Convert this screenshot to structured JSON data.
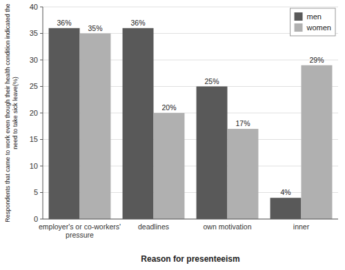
{
  "chart_data": {
    "type": "bar",
    "categories": [
      "employer's or co-workers'\npressure",
      "deadlines",
      "own motivation",
      "inner"
    ],
    "series": [
      {
        "name": "men",
        "color": "#595959",
        "values": [
          36,
          36,
          25,
          4
        ],
        "value_labels": [
          "36%",
          "36%",
          "25%",
          "4%"
        ]
      },
      {
        "name": "women",
        "color": "#b0b0b0",
        "values": [
          35,
          20,
          17,
          29
        ],
        "value_labels": [
          "35%",
          "20%",
          "17%",
          "29%"
        ]
      }
    ],
    "xlabel": "Reason for presenteeism",
    "ylabel": "Respondents that came to work even though their health condition indicated the\nneed to take sick leave(%)",
    "ylim": [
      0,
      40
    ],
    "yticks": [
      0,
      5,
      10,
      15,
      20,
      25,
      30,
      35,
      40
    ],
    "grid": true,
    "legend": "upper right",
    "data_labels": true
  }
}
